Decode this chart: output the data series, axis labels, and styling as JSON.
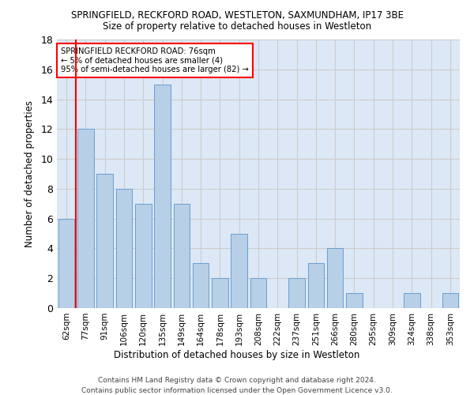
{
  "title1": "SPRINGFIELD, RECKFORD ROAD, WESTLETON, SAXMUNDHAM, IP17 3BE",
  "title2": "Size of property relative to detached houses in Westleton",
  "xlabel": "Distribution of detached houses by size in Westleton",
  "ylabel": "Number of detached properties",
  "categories": [
    "62sqm",
    "77sqm",
    "91sqm",
    "106sqm",
    "120sqm",
    "135sqm",
    "149sqm",
    "164sqm",
    "178sqm",
    "193sqm",
    "208sqm",
    "222sqm",
    "237sqm",
    "251sqm",
    "266sqm",
    "280sqm",
    "295sqm",
    "309sqm",
    "324sqm",
    "338sqm",
    "353sqm"
  ],
  "values": [
    6,
    12,
    9,
    8,
    7,
    15,
    7,
    3,
    2,
    5,
    2,
    0,
    2,
    3,
    4,
    1,
    0,
    0,
    1,
    0,
    1
  ],
  "bar_color": "#b8cfe8",
  "bar_edge_color": "#6a9fd0",
  "ylim": [
    0,
    18
  ],
  "yticks": [
    0,
    2,
    4,
    6,
    8,
    10,
    12,
    14,
    16,
    18
  ],
  "grid_color": "#cccccc",
  "bg_color": "#dce8f5",
  "annotation_box_text_line1": "SPRINGFIELD RECKFORD ROAD: 76sqm",
  "annotation_box_text_line2": "← 5% of detached houses are smaller (4)",
  "annotation_box_text_line3": "95% of semi-detached houses are larger (82) →",
  "footer1": "Contains HM Land Registry data © Crown copyright and database right 2024.",
  "footer2": "Contains public sector information licensed under the Open Government Licence v3.0."
}
